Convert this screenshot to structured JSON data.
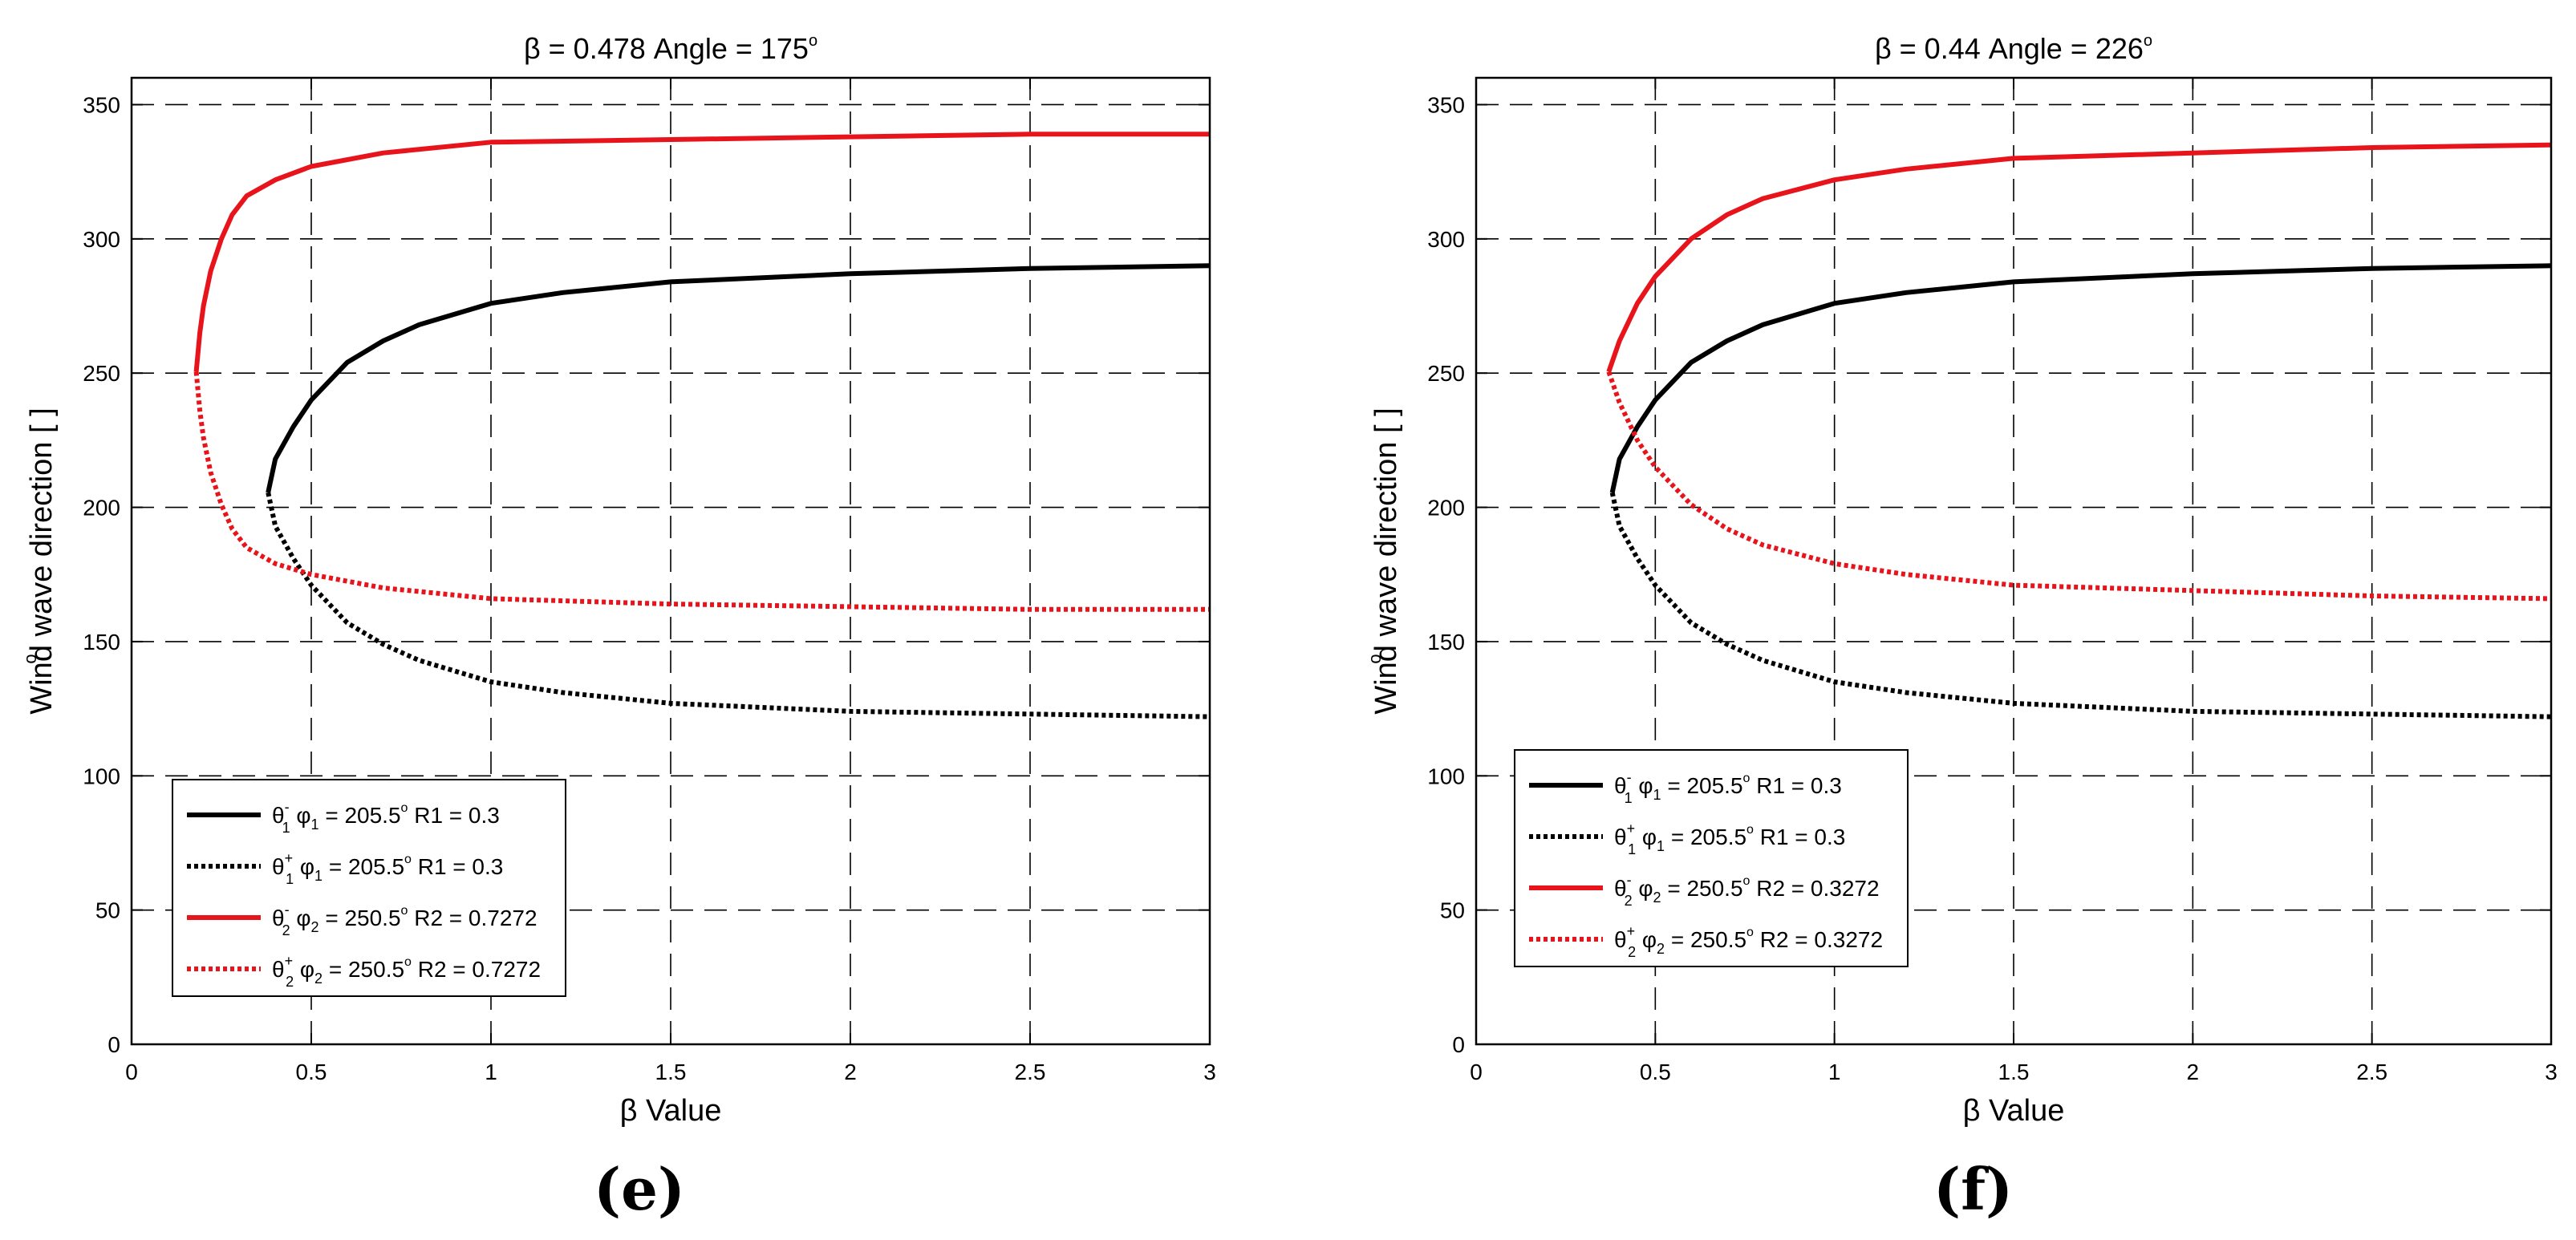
{
  "panel_labels": [
    "(e)",
    "(f)"
  ],
  "chart_data": [
    {
      "type": "line",
      "panel": "(e)",
      "title": "β = 0.478   Angle = 175°",
      "title_beta": "β = 0.478",
      "title_angle": "Angle = 175",
      "xlabel": "β Value",
      "ylabel": "Wind wave direction [ ]",
      "xlim": [
        0,
        3
      ],
      "ylim": [
        0,
        360
      ],
      "xticks": [
        0,
        0.5,
        1,
        1.5,
        2,
        2.5,
        3
      ],
      "xtick_labels": [
        "0",
        "0.5",
        "1",
        "1.5",
        "2",
        "2.5",
        "3"
      ],
      "yticks": [
        0,
        50,
        100,
        150,
        200,
        250,
        300,
        350
      ],
      "ytick_labels": [
        "0",
        "50",
        "100",
        "150",
        "200",
        "250",
        "300",
        "350"
      ],
      "grid": true,
      "legend_position": "lower-left",
      "series": [
        {
          "name": "θ1- φ1 = 205.5° R1 = 0.3",
          "sym": "θ",
          "sub": "1",
          "sup": "-",
          "phi": "φ",
          "phisub": "1",
          "eq": "= 205.5",
          "r": "R1 = 0.3",
          "color": "#000000",
          "style": "solid",
          "x": [
            0.38,
            0.4,
            0.45,
            0.5,
            0.6,
            0.7,
            0.8,
            1.0,
            1.2,
            1.5,
            2.0,
            2.5,
            3.0
          ],
          "y": [
            205.5,
            218,
            230,
            240,
            254,
            262,
            268,
            276,
            280,
            284,
            287,
            289,
            290
          ]
        },
        {
          "name": "θ1+ φ1 = 205.5° R1 = 0.3",
          "sym": "θ",
          "sub": "1",
          "sup": "+",
          "phi": "φ",
          "phisub": "1",
          "eq": "= 205.5",
          "r": "R1 = 0.3",
          "color": "#000000",
          "style": "dotted",
          "x": [
            0.38,
            0.4,
            0.45,
            0.5,
            0.6,
            0.7,
            0.8,
            1.0,
            1.2,
            1.5,
            2.0,
            2.5,
            3.0
          ],
          "y": [
            205.5,
            193,
            181,
            171,
            157,
            149,
            143,
            135,
            131,
            127,
            124,
            123,
            122
          ]
        },
        {
          "name": "θ2- φ2 = 250.5° R2 = 0.7272",
          "sym": "θ",
          "sub": "2",
          "sup": "-",
          "phi": "φ",
          "phisub": "2",
          "eq": "= 250.5",
          "r": "R2 = 0.7272",
          "color": "#e8141b",
          "style": "solid",
          "x": [
            0.18,
            0.19,
            0.2,
            0.22,
            0.25,
            0.28,
            0.32,
            0.4,
            0.5,
            0.7,
            1.0,
            1.5,
            2.0,
            2.5,
            3.0
          ],
          "y": [
            250.5,
            265,
            275,
            288,
            300,
            309,
            316,
            322,
            327,
            332,
            336,
            337,
            338,
            339,
            339
          ]
        },
        {
          "name": "θ2+ φ2 = 250.5° R2 = 0.7272",
          "sym": "θ",
          "sub": "2",
          "sup": "+",
          "phi": "φ",
          "phisub": "2",
          "eq": "= 250.5",
          "r": "R2 = 0.7272",
          "color": "#e8141b",
          "style": "dotted",
          "x": [
            0.18,
            0.19,
            0.2,
            0.22,
            0.25,
            0.28,
            0.32,
            0.4,
            0.5,
            0.7,
            1.0,
            1.5,
            2.0,
            2.5,
            3.0
          ],
          "y": [
            250.5,
            236,
            226,
            213,
            201,
            192,
            185,
            179,
            175,
            170,
            166,
            164,
            163,
            162,
            162
          ]
        }
      ]
    },
    {
      "type": "line",
      "panel": "(f)",
      "title": "β = 0.44   Angle = 226°",
      "title_beta": "β = 0.44",
      "title_angle": "Angle = 226",
      "xlabel": "β Value",
      "ylabel": "Wind wave direction [ ]",
      "xlim": [
        0,
        3
      ],
      "ylim": [
        0,
        360
      ],
      "xticks": [
        0,
        0.5,
        1,
        1.5,
        2,
        2.5,
        3
      ],
      "xtick_labels": [
        "0",
        "0.5",
        "1",
        "1.5",
        "2",
        "2.5",
        "3"
      ],
      "yticks": [
        0,
        50,
        100,
        150,
        200,
        250,
        300,
        350
      ],
      "ytick_labels": [
        "0",
        "50",
        "100",
        "150",
        "200",
        "250",
        "300",
        "350"
      ],
      "grid": true,
      "legend_position": "middle-left",
      "series": [
        {
          "name": "θ1- φ1 = 205.5° R1 = 0.3",
          "sym": "θ",
          "sub": "1",
          "sup": "-",
          "phi": "φ",
          "phisub": "1",
          "eq": "= 205.5",
          "r": "R1 = 0.3",
          "color": "#000000",
          "style": "solid",
          "x": [
            0.38,
            0.4,
            0.45,
            0.5,
            0.6,
            0.7,
            0.8,
            1.0,
            1.2,
            1.5,
            2.0,
            2.5,
            3.0
          ],
          "y": [
            205.5,
            218,
            230,
            240,
            254,
            262,
            268,
            276,
            280,
            284,
            287,
            289,
            290
          ]
        },
        {
          "name": "θ1+ φ1 = 205.5° R1 = 0.3",
          "sym": "θ",
          "sub": "1",
          "sup": "+",
          "phi": "φ",
          "phisub": "1",
          "eq": "= 205.5",
          "r": "R1 = 0.3",
          "color": "#000000",
          "style": "dotted",
          "x": [
            0.38,
            0.4,
            0.45,
            0.5,
            0.6,
            0.7,
            0.8,
            1.0,
            1.2,
            1.5,
            2.0,
            2.5,
            3.0
          ],
          "y": [
            205.5,
            193,
            181,
            171,
            157,
            149,
            143,
            135,
            131,
            127,
            124,
            123,
            122
          ]
        },
        {
          "name": "θ2- φ2 = 250.5° R2 = 0.3272",
          "sym": "θ",
          "sub": "2",
          "sup": "-",
          "phi": "φ",
          "phisub": "2",
          "eq": "= 250.5",
          "r": "R2 = 0.3272",
          "color": "#e8141b",
          "style": "solid",
          "x": [
            0.37,
            0.4,
            0.45,
            0.5,
            0.6,
            0.7,
            0.8,
            1.0,
            1.2,
            1.5,
            2.0,
            2.5,
            3.0
          ],
          "y": [
            250.5,
            262,
            276,
            286,
            300,
            309,
            315,
            322,
            326,
            330,
            332,
            334,
            335
          ]
        },
        {
          "name": "θ2+ φ2 = 250.5° R2 = 0.3272",
          "sym": "θ",
          "sub": "2",
          "sup": "+",
          "phi": "φ",
          "phisub": "2",
          "eq": "= 250.5",
          "r": "R2 = 0.3272",
          "color": "#e8141b",
          "style": "dotted",
          "x": [
            0.37,
            0.4,
            0.45,
            0.5,
            0.6,
            0.7,
            0.8,
            1.0,
            1.2,
            1.5,
            2.0,
            2.5,
            3.0
          ],
          "y": [
            250.5,
            239,
            225,
            215,
            201,
            192,
            186,
            179,
            175,
            171,
            169,
            167,
            166
          ]
        }
      ]
    }
  ]
}
